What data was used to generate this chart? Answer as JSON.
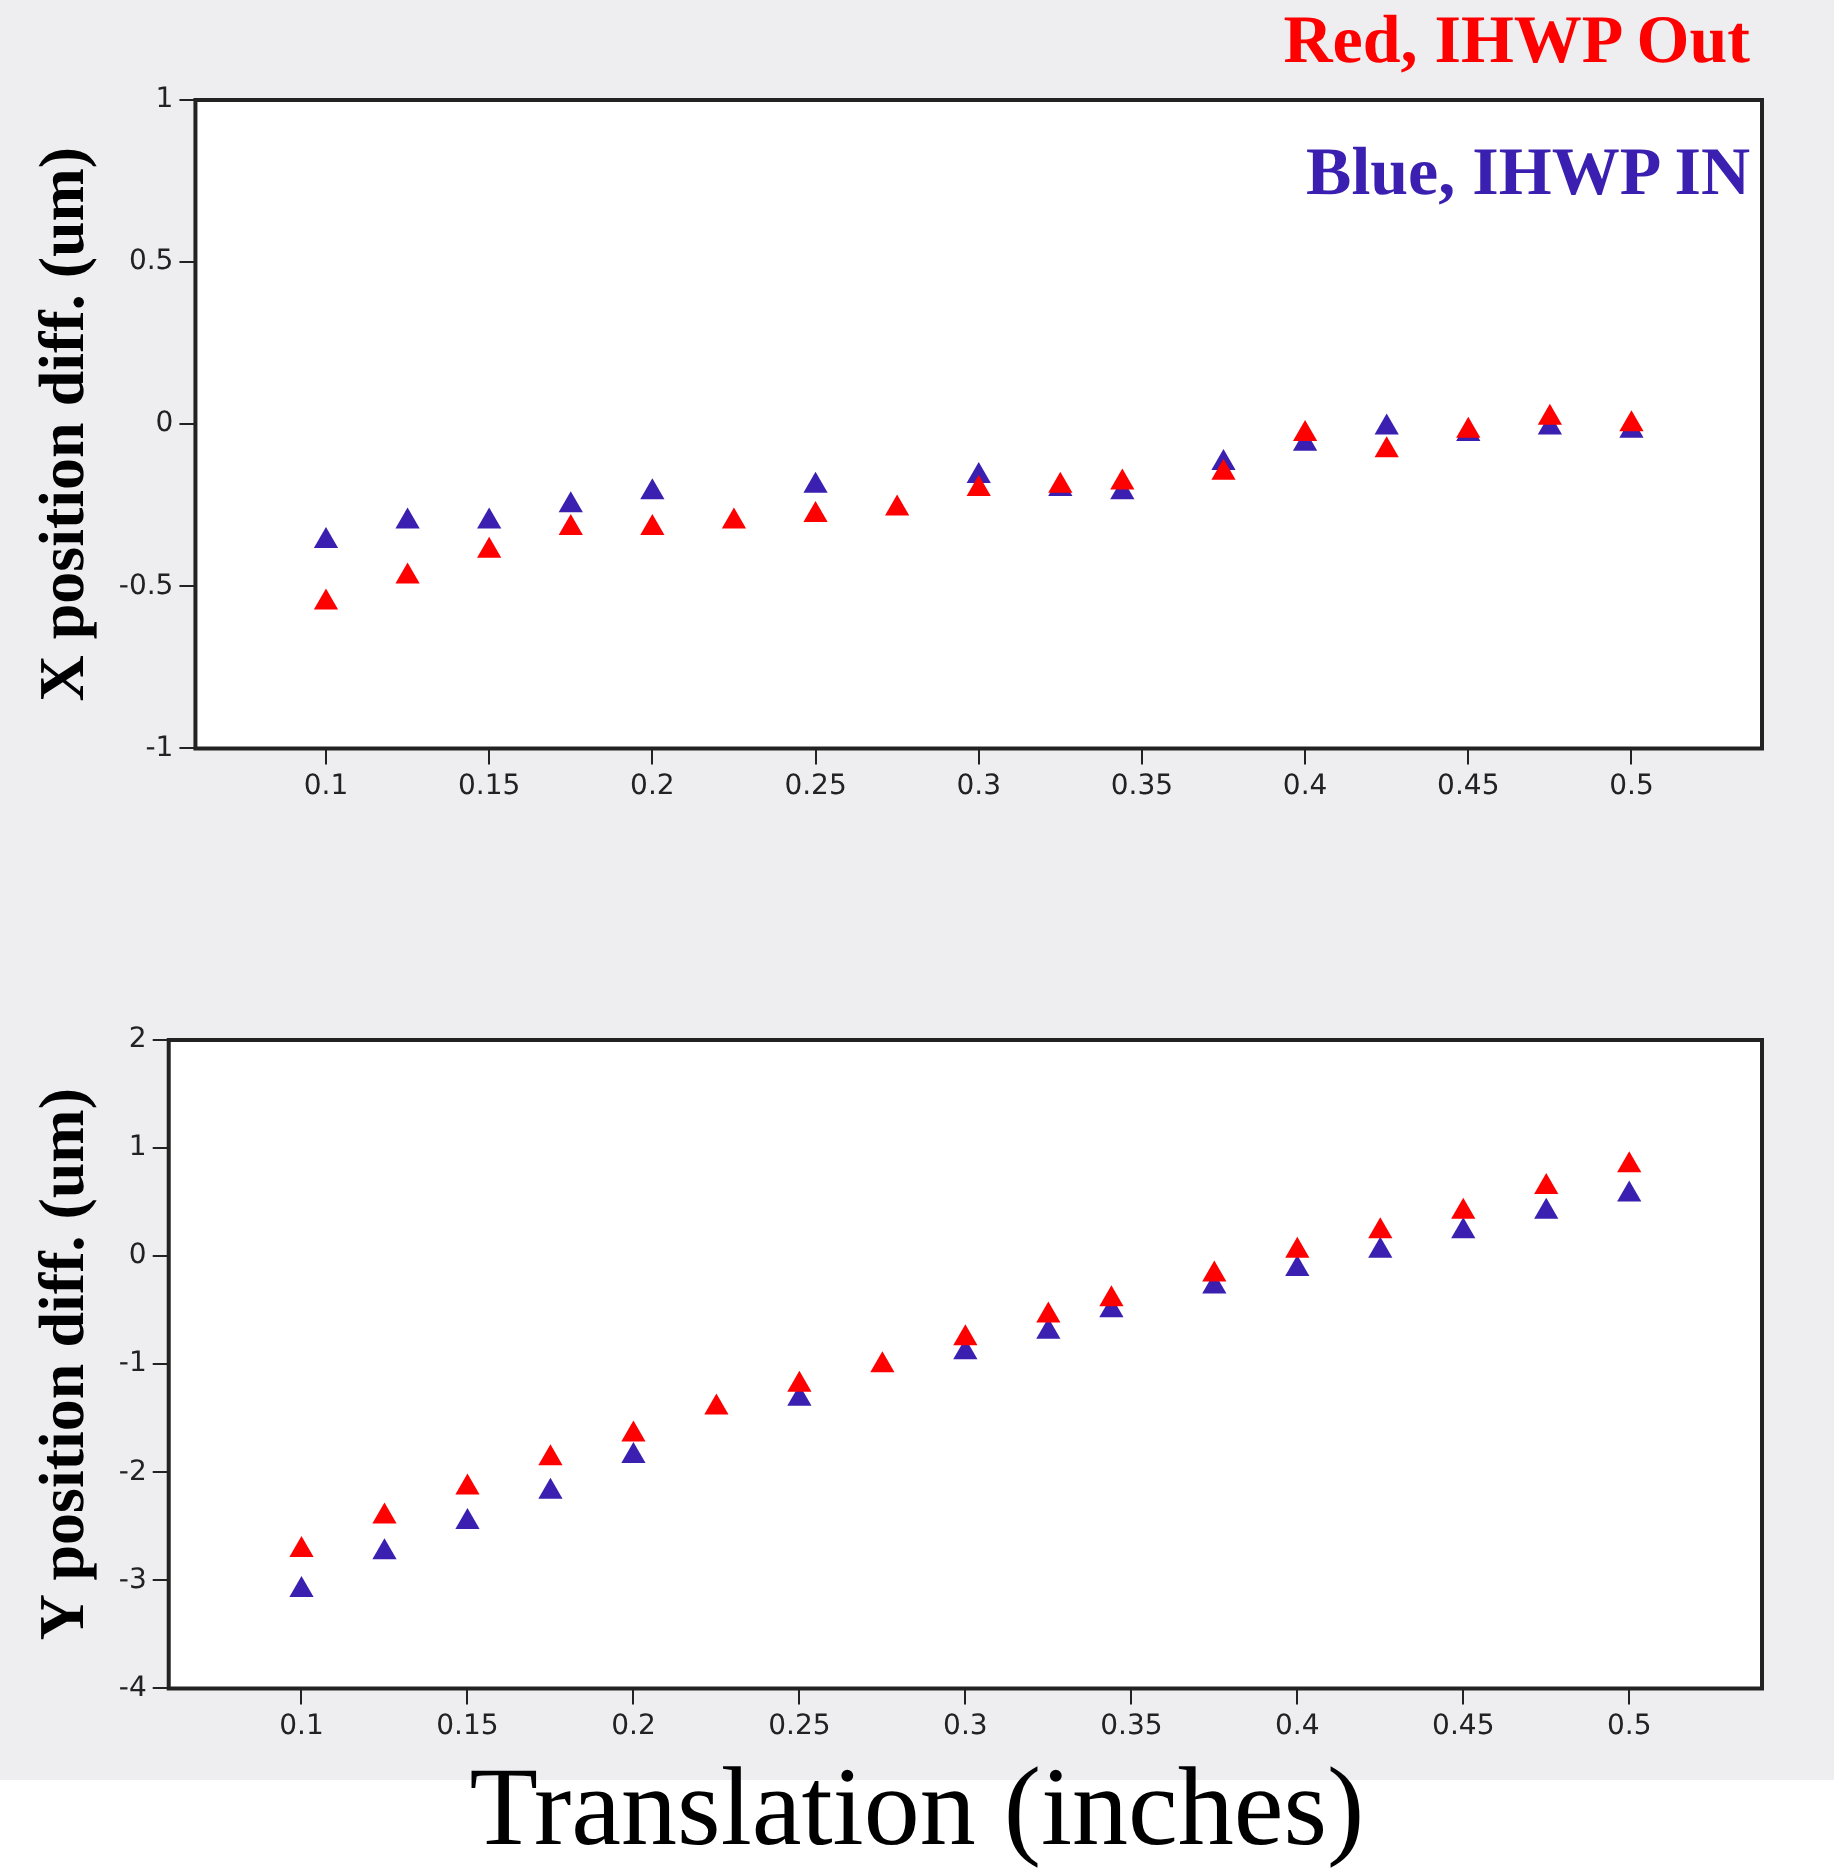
{
  "chart_data": [
    {
      "type": "scatter",
      "ylabel": "X position diff. (um)",
      "legend": "top right",
      "marker": "triangle",
      "grid": false,
      "x": [
        0.1,
        0.125,
        0.15,
        0.175,
        0.2,
        0.225,
        0.25,
        0.275,
        0.3,
        0.325,
        0.344,
        0.375,
        0.4,
        0.425,
        0.45,
        0.475,
        0.5
      ],
      "xlim": [
        0.06,
        0.54
      ],
      "xticks": [
        0.1,
        0.15,
        0.2,
        0.25,
        0.3,
        0.35,
        0.4,
        0.45,
        0.5
      ],
      "ylim": [
        -1,
        1
      ],
      "yticks": [
        -1,
        -0.5,
        0,
        0.5,
        1
      ],
      "series": [
        {
          "name": "Red, IHWP Out",
          "color": "#ff0000",
          "values": [
            -0.55,
            -0.47,
            -0.39,
            -0.32,
            -0.32,
            -0.3,
            -0.28,
            -0.26,
            -0.2,
            -0.19,
            -0.18,
            -0.15,
            -0.03,
            -0.08,
            -0.02,
            0.02,
            0
          ]
        },
        {
          "name": "Blue, IHWP IN",
          "color": "#3a1fb0",
          "values": [
            -0.36,
            -0.3,
            -0.3,
            -0.25,
            -0.21,
            null,
            -0.19,
            null,
            -0.16,
            -0.2,
            -0.21,
            -0.12,
            -0.06,
            -0.01,
            -0.03,
            -0.01,
            -0.02
          ]
        }
      ]
    },
    {
      "type": "scatter",
      "ylabel": "Y position diff. (um)",
      "xlabel": "Translation (inches)",
      "legend": false,
      "marker": "triangle",
      "grid": false,
      "x": [
        0.1,
        0.125,
        0.15,
        0.175,
        0.2,
        0.225,
        0.25,
        0.275,
        0.3,
        0.325,
        0.344,
        0.375,
        0.4,
        0.425,
        0.45,
        0.475,
        0.5
      ],
      "xlim": [
        0.06,
        0.54
      ],
      "xticks": [
        0.1,
        0.15,
        0.2,
        0.25,
        0.3,
        0.35,
        0.4,
        0.45,
        0.5
      ],
      "ylim": [
        -4,
        2
      ],
      "yticks": [
        -4,
        -3,
        -2,
        -1,
        0,
        1,
        2
      ],
      "series": [
        {
          "color": "#ff0000",
          "values": [
            -2.72,
            -2.41,
            -2.14,
            -1.87,
            -1.65,
            -1.4,
            -1.19,
            -1.01,
            -0.76,
            -0.55,
            -0.4,
            -0.17,
            0.05,
            0.23,
            0.41,
            0.64,
            0.84
          ]
        },
        {
          "color": "#3a1fb0",
          "values": [
            -3.09,
            -2.74,
            -2.46,
            -2.18,
            -1.85,
            null,
            -1.32,
            null,
            -0.89,
            -0.7,
            -0.5,
            -0.28,
            -0.12,
            0.05,
            0.23,
            0.41,
            0.57
          ]
        }
      ]
    }
  ]
}
